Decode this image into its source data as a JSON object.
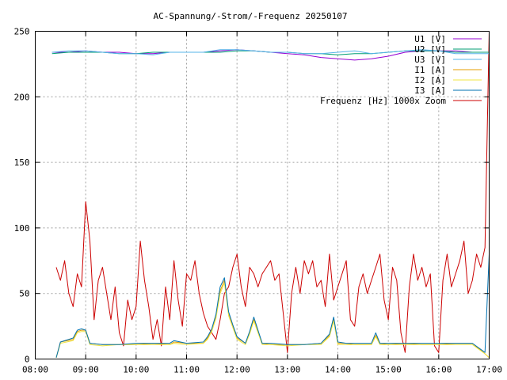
{
  "chart_data": {
    "type": "line",
    "title": "AC-Spannung/-Strom/-Frequenz 20250107",
    "xlabel": "",
    "ylabel": "",
    "xlim": [
      "08:00",
      "17:00"
    ],
    "ylim": [
      0,
      250
    ],
    "x_ticks": [
      "08:00",
      "09:00",
      "10:00",
      "11:00",
      "12:00",
      "13:00",
      "14:00",
      "15:00",
      "16:00",
      "17:00"
    ],
    "y_ticks": [
      "0",
      "50",
      "100",
      "150",
      "200",
      "250"
    ],
    "grid": true,
    "legend_position": "top-right",
    "series": [
      {
        "name": "U1 [V]",
        "color": "#9400d3",
        "x": [
          "08:20",
          "08:40",
          "09:00",
          "09:20",
          "09:40",
          "10:00",
          "10:20",
          "10:40",
          "11:00",
          "11:20",
          "11:40",
          "12:00",
          "12:20",
          "12:40",
          "13:00",
          "13:20",
          "13:40",
          "14:00",
          "14:20",
          "14:40",
          "15:00",
          "15:20",
          "15:40",
          "16:00",
          "16:20",
          "16:40",
          "17:00"
        ],
        "values": [
          234,
          234,
          235,
          234,
          234,
          233,
          233,
          234,
          234,
          234,
          235,
          236,
          235,
          234,
          233,
          232,
          230,
          229,
          228,
          229,
          231,
          234,
          235,
          235,
          235,
          234,
          234
        ]
      },
      {
        "name": "U2 [V]",
        "color": "#009e73",
        "x": [
          "08:20",
          "08:40",
          "09:00",
          "09:20",
          "09:40",
          "10:00",
          "10:20",
          "10:40",
          "11:00",
          "11:20",
          "11:40",
          "12:00",
          "12:20",
          "12:40",
          "13:00",
          "13:20",
          "13:40",
          "14:00",
          "14:20",
          "14:40",
          "15:00",
          "15:20",
          "15:40",
          "16:00",
          "16:20",
          "16:40",
          "17:00"
        ],
        "values": [
          233,
          234,
          234,
          234,
          233,
          233,
          234,
          234,
          234,
          234,
          234,
          235,
          235,
          234,
          234,
          233,
          233,
          232,
          233,
          233,
          234,
          235,
          235,
          235,
          234,
          234,
          234
        ]
      },
      {
        "name": "U3 [V]",
        "color": "#56b4e9",
        "x": [
          "08:20",
          "08:40",
          "09:00",
          "09:20",
          "09:40",
          "10:00",
          "10:20",
          "10:40",
          "11:00",
          "11:20",
          "11:40",
          "12:00",
          "12:20",
          "12:40",
          "13:00",
          "13:20",
          "13:40",
          "14:00",
          "14:20",
          "14:40",
          "15:00",
          "15:20",
          "15:40",
          "16:00",
          "16:20",
          "16:40",
          "17:00"
        ],
        "values": [
          234,
          235,
          235,
          234,
          233,
          233,
          232,
          234,
          234,
          234,
          236,
          236,
          235,
          234,
          234,
          233,
          233,
          234,
          235,
          233,
          234,
          235,
          236,
          235,
          233,
          233,
          233
        ]
      },
      {
        "name": "I1 [A]",
        "color": "#e69f00",
        "x": [
          "08:25",
          "08:30",
          "08:45",
          "08:50",
          "08:55",
          "09:00",
          "09:05",
          "09:20",
          "09:40",
          "10:00",
          "10:20",
          "10:40",
          "10:45",
          "11:00",
          "11:20",
          "11:25",
          "11:30",
          "11:35",
          "11:40",
          "11:45",
          "11:50",
          "11:55",
          "12:00",
          "12:10",
          "12:15",
          "12:20",
          "12:30",
          "12:40",
          "13:00",
          "13:20",
          "13:40",
          "13:50",
          "13:55",
          "14:00",
          "14:10",
          "14:20",
          "14:40",
          "14:45",
          "14:50",
          "15:00",
          "15:20",
          "15:40",
          "16:00",
          "16:20",
          "16:40",
          "16:55",
          "17:00"
        ],
        "values": [
          1,
          13,
          15,
          21,
          22,
          22,
          12,
          11,
          11,
          11,
          12,
          11,
          13,
          12,
          12,
          16,
          22,
          32,
          52,
          60,
          35,
          25,
          16,
          12,
          20,
          30,
          12,
          11,
          11,
          11,
          12,
          18,
          30,
          12,
          12,
          11,
          11,
          18,
          12,
          11,
          12,
          11,
          11,
          12,
          12,
          4,
          1
        ]
      },
      {
        "name": "I2 [A]",
        "color": "#f0e442",
        "x": [
          "08:25",
          "08:30",
          "08:45",
          "08:50",
          "08:55",
          "09:00",
          "09:05",
          "09:20",
          "09:40",
          "10:00",
          "10:20",
          "10:40",
          "10:45",
          "11:00",
          "11:20",
          "11:25",
          "11:30",
          "11:35",
          "11:40",
          "11:45",
          "11:50",
          "11:55",
          "12:00",
          "12:10",
          "12:15",
          "12:20",
          "12:30",
          "12:40",
          "13:00",
          "13:20",
          "13:40",
          "13:50",
          "13:55",
          "14:00",
          "14:10",
          "14:20",
          "14:40",
          "14:45",
          "14:50",
          "15:00",
          "15:20",
          "15:40",
          "16:00",
          "16:20",
          "16:40",
          "16:55",
          "17:00"
        ],
        "values": [
          1,
          12,
          14,
          20,
          21,
          21,
          11,
          10,
          11,
          11,
          11,
          11,
          12,
          11,
          12,
          15,
          21,
          31,
          50,
          58,
          33,
          24,
          15,
          11,
          19,
          29,
          11,
          11,
          10,
          11,
          11,
          17,
          29,
          11,
          11,
          11,
          11,
          17,
          11,
          11,
          11,
          11,
          11,
          11,
          11,
          4,
          1
        ]
      },
      {
        "name": "I3 [A]",
        "color": "#0072b2",
        "x": [
          "08:25",
          "08:30",
          "08:45",
          "08:50",
          "08:55",
          "09:00",
          "09:05",
          "09:20",
          "09:40",
          "10:00",
          "10:20",
          "10:40",
          "10:45",
          "11:00",
          "11:20",
          "11:25",
          "11:30",
          "11:35",
          "11:40",
          "11:45",
          "11:50",
          "11:55",
          "12:00",
          "12:10",
          "12:15",
          "12:20",
          "12:30",
          "12:40",
          "13:00",
          "13:20",
          "13:40",
          "13:50",
          "13:55",
          "14:00",
          "14:10",
          "14:20",
          "14:40",
          "14:45",
          "14:50",
          "15:00",
          "15:20",
          "15:40",
          "16:00",
          "16:20",
          "16:40",
          "16:55",
          "17:00"
        ],
        "values": [
          1,
          13,
          16,
          22,
          23,
          22,
          12,
          11,
          11,
          12,
          12,
          12,
          14,
          12,
          13,
          17,
          23,
          34,
          55,
          62,
          36,
          26,
          17,
          12,
          21,
          32,
          12,
          12,
          11,
          11,
          12,
          19,
          32,
          13,
          12,
          12,
          12,
          20,
          12,
          12,
          12,
          12,
          12,
          12,
          12,
          5,
          80
        ]
      },
      {
        "name": "Frequenz [Hz] 1000x Zoom",
        "color": "#cc0000",
        "x": [
          "08:25",
          "08:30",
          "08:35",
          "08:40",
          "08:45",
          "08:50",
          "08:55",
          "09:00",
          "09:05",
          "09:10",
          "09:15",
          "09:20",
          "09:25",
          "09:30",
          "09:35",
          "09:40",
          "09:45",
          "09:50",
          "09:55",
          "10:00",
          "10:05",
          "10:10",
          "10:15",
          "10:20",
          "10:25",
          "10:30",
          "10:35",
          "10:40",
          "10:45",
          "10:50",
          "10:55",
          "11:00",
          "11:05",
          "11:10",
          "11:15",
          "11:20",
          "11:25",
          "11:30",
          "11:35",
          "11:40",
          "11:45",
          "11:50",
          "11:55",
          "12:00",
          "12:05",
          "12:10",
          "12:15",
          "12:20",
          "12:25",
          "12:30",
          "12:35",
          "12:40",
          "12:45",
          "12:50",
          "12:55",
          "13:00",
          "13:05",
          "13:10",
          "13:15",
          "13:20",
          "13:25",
          "13:30",
          "13:35",
          "13:40",
          "13:45",
          "13:50",
          "13:55",
          "14:00",
          "14:05",
          "14:10",
          "14:15",
          "14:20",
          "14:25",
          "14:30",
          "14:35",
          "14:40",
          "14:45",
          "14:50",
          "14:55",
          "15:00",
          "15:05",
          "15:10",
          "15:15",
          "15:20",
          "15:25",
          "15:30",
          "15:35",
          "15:40",
          "15:45",
          "15:50",
          "15:55",
          "16:00",
          "16:05",
          "16:10",
          "16:15",
          "16:20",
          "16:25",
          "16:30",
          "16:35",
          "16:40",
          "16:45",
          "16:50",
          "16:55",
          "17:00"
        ],
        "values": [
          70,
          60,
          75,
          50,
          40,
          65,
          55,
          120,
          90,
          30,
          60,
          70,
          50,
          30,
          55,
          20,
          10,
          45,
          30,
          40,
          90,
          60,
          40,
          15,
          30,
          10,
          55,
          30,
          75,
          45,
          25,
          65,
          60,
          75,
          50,
          35,
          25,
          20,
          15,
          30,
          50,
          55,
          70,
          80,
          55,
          40,
          70,
          65,
          55,
          65,
          70,
          75,
          60,
          65,
          35,
          5,
          50,
          70,
          50,
          75,
          65,
          75,
          55,
          60,
          40,
          80,
          45,
          55,
          65,
          75,
          30,
          25,
          55,
          65,
          50,
          60,
          70,
          80,
          45,
          30,
          70,
          60,
          20,
          5,
          55,
          80,
          60,
          70,
          55,
          65,
          10,
          5,
          60,
          80,
          55,
          65,
          75,
          90,
          50,
          60,
          80,
          70,
          85,
          250
        ]
      }
    ]
  }
}
